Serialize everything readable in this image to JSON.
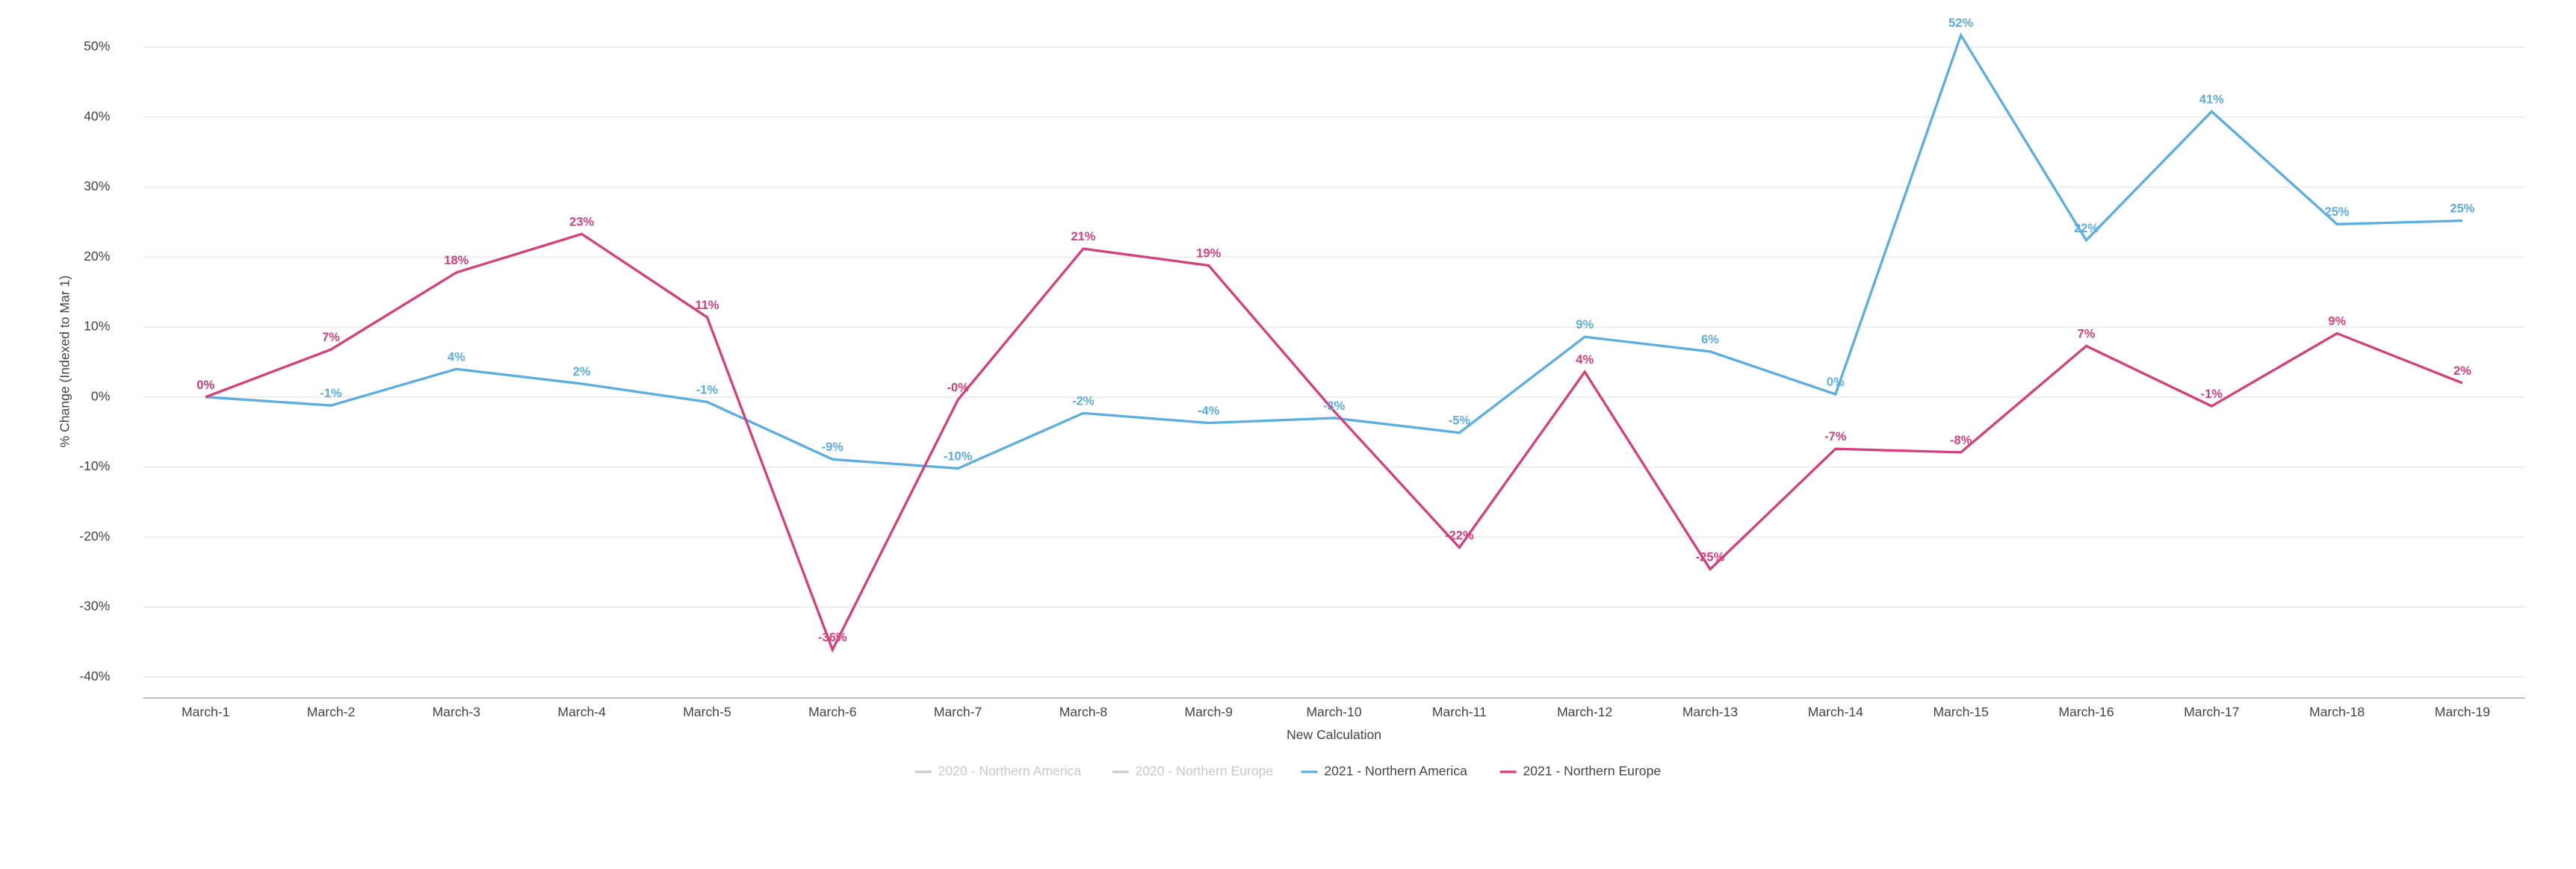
{
  "chart_data": {
    "type": "line",
    "x_label": "New Calculation",
    "y_label": "% Change (Indexed to Mar 1)",
    "categories": [
      "March-1",
      "March-2",
      "March-3",
      "March-4",
      "March-5",
      "March-6",
      "March-7",
      "March-8",
      "March-9",
      "March-10",
      "March-11",
      "March-12",
      "March-13",
      "March-14",
      "March-15",
      "March-16",
      "March-17",
      "March-18",
      "March-19"
    ],
    "legend_inactive": [
      {
        "name": "2020 - Northern America",
        "color": "#cccccc"
      },
      {
        "name": "2020 - Northern Europe",
        "color": "#cccccc"
      }
    ],
    "series": [
      {
        "name": "2021 - Northern America",
        "color": "#5aaee0",
        "values": [
          0,
          -1.2,
          4,
          1.9,
          -0.7,
          -8.9,
          -10.2,
          -2.3,
          -3.7,
          -3,
          -5.1,
          8.6,
          6.5,
          0.4,
          51.7,
          22.4,
          40.8,
          24.7,
          25.2
        ],
        "value_labels": [
          "0%",
          "-1%",
          "4%",
          "2%",
          "-1%",
          "-9%",
          "-10%",
          "-2%",
          "-4%",
          "-3%",
          "-5%",
          "9%",
          "6%",
          "0%",
          "52%",
          "22%",
          "41%",
          "25%",
          "25%"
        ]
      },
      {
        "name": "2021 - Northern Europe",
        "color": "#d63f7c",
        "values": [
          0,
          6.8,
          17.8,
          23.3,
          11.4,
          -36.1,
          -0.4,
          21.2,
          18.8,
          -2,
          -21.5,
          3.6,
          -24.6,
          -7.4,
          -7.9,
          7.3,
          -1.3,
          9.1,
          2
        ],
        "value_labels": [
          "0%",
          "7%",
          "18%",
          "23%",
          "11%",
          "-36%",
          "-0%",
          "21%",
          "19%",
          null,
          "-22%",
          "4%",
          "-25%",
          "-7%",
          "-8%",
          "7%",
          "-1%",
          "9%",
          "2%"
        ]
      }
    ],
    "ylim": [
      -43,
      52
    ],
    "yticks": [
      {
        "value": -40,
        "label": "-40%"
      },
      {
        "value": -30,
        "label": "-30%"
      },
      {
        "value": -20,
        "label": "-20%"
      },
      {
        "value": -10,
        "label": "-10%"
      },
      {
        "value": 0,
        "label": "0%"
      },
      {
        "value": 10,
        "label": "10%"
      },
      {
        "value": 20,
        "label": "20%"
      },
      {
        "value": 30,
        "label": "30%"
      },
      {
        "value": 40,
        "label": "40%"
      },
      {
        "value": 50,
        "label": "50%"
      }
    ],
    "grid": true,
    "legend_position": "bottom"
  }
}
